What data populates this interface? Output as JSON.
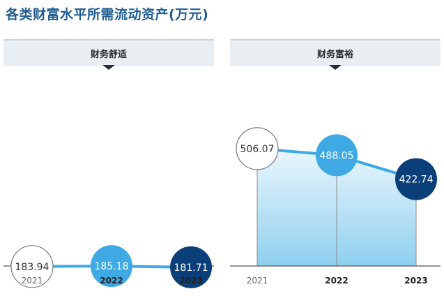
{
  "title": "各类财富水平所需流动资产(万元)",
  "panels": [
    {
      "label": "财务舒适"
    },
    {
      "label": "财务富裕"
    }
  ],
  "colors": {
    "title": "#1f5c93",
    "line": "#3ea9e3",
    "point_2021_fill": "#ffffff",
    "point_2022_fill": "#3ea9e3",
    "point_2023_fill": "#0b3f7a",
    "area_top": "#eaf6fc",
    "area_bottom": "#8fd0ef"
  },
  "chart_data": [
    {
      "type": "area",
      "title": "财务舒适",
      "categories": [
        "2021",
        "2022",
        "2023"
      ],
      "bold_categories": [
        "2022",
        "2023"
      ],
      "values": [
        183.94,
        185.18,
        181.71
      ],
      "labels": [
        "183.94",
        "185.18",
        "181.71"
      ],
      "grid": false
    },
    {
      "type": "area",
      "title": "财务富裕",
      "categories": [
        "2021",
        "2022",
        "2023"
      ],
      "bold_categories": [
        "2022",
        "2023"
      ],
      "values": [
        506.07,
        488.05,
        422.74
      ],
      "labels": [
        "506.07",
        "488.05",
        "422.74"
      ],
      "grid": false
    }
  ]
}
